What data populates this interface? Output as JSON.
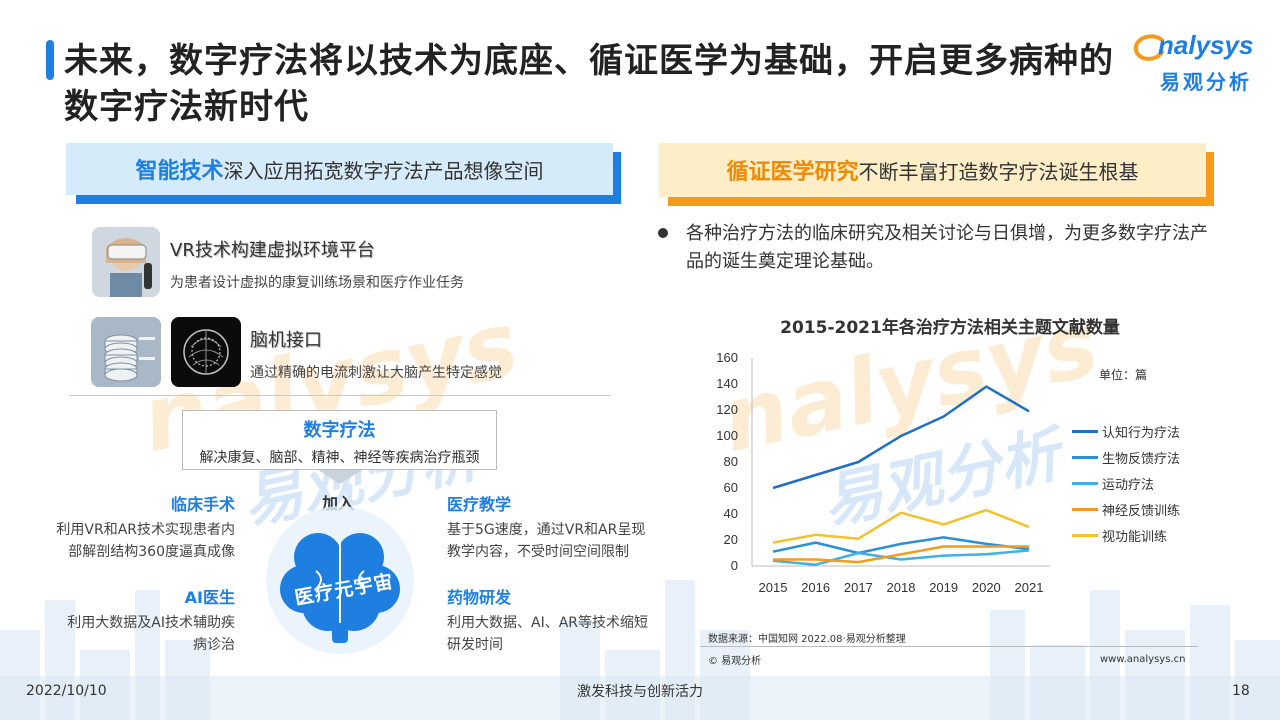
{
  "header": {
    "title": "未来，数字疗法将以技术为底座、循证医学为基础，开启更多病种的数字疗法新时代",
    "logo_text": "nalysys",
    "logo_sub": "易观分析"
  },
  "left": {
    "heading_strong": "智能技术",
    "heading_rest": "深入应用拓宽数字疗法产品想像空间",
    "items": [
      {
        "title": "VR技术构建虚拟环境平台",
        "desc": "为患者设计虚拟的康复训练场景和医疗作业任务"
      },
      {
        "title": "脑机接口",
        "desc": "通过精确的电流刺激让大脑产生特定感觉"
      }
    ],
    "dt_title": "数字疗法",
    "dt_desc": "解决康复、脑部、精神、神经等疾病治疗瓶颈",
    "join": "加入",
    "center_label": "医疗元宇宙",
    "features": [
      {
        "title": "临床手术",
        "desc1": "利用VR和AR技术实现患者内",
        "desc2": "部解剖结构360度逼真成像"
      },
      {
        "title": "医疗教学",
        "desc1": "基于5G速度，通过VR和AR呈现",
        "desc2": "教学内容，不受时间空间限制"
      },
      {
        "title": "AI医生",
        "desc1": "利用大数据及AI技术辅助疾",
        "desc2": "病诊治"
      },
      {
        "title": "药物研发",
        "desc1": "利用大数据、AI、AR等技术缩短",
        "desc2": "研发时间"
      }
    ]
  },
  "right": {
    "heading_strong": "循证医学研究",
    "heading_rest": "不断丰富打造数字疗法诞生根基",
    "bullet": "各种治疗方法的临床研究及相关讨论与日俱增，为更多数字疗法产品的诞生奠定理论基础。",
    "unit": "单位：篇",
    "source": "数据来源：中国知网 2022.08·易观分析整理",
    "copyright": "© 易观分析",
    "website": "www.analysys.cn"
  },
  "chart_data": {
    "type": "line",
    "title": "2015-2021年各治疗方法相关主题文献数量",
    "x": [
      "2015",
      "2016",
      "2017",
      "2018",
      "2019",
      "2020",
      "2021"
    ],
    "ylim": [
      0,
      160
    ],
    "yticks": [
      0,
      20,
      40,
      60,
      80,
      100,
      120,
      140,
      160
    ],
    "legend_position": "right",
    "series": [
      {
        "name": "认知行为疗法",
        "color": "#1f6fc4",
        "values": [
          60,
          70,
          80,
          100,
          115,
          138,
          119
        ]
      },
      {
        "name": "生物反馈疗法",
        "color": "#2b8fd8",
        "values": [
          11,
          18,
          10,
          17,
          22,
          17,
          13
        ]
      },
      {
        "name": "运动疗法",
        "color": "#3fb0e8",
        "values": [
          4,
          1,
          10,
          5,
          8,
          9,
          12
        ]
      },
      {
        "name": "神经反馈训练",
        "color": "#f39b1c",
        "values": [
          5,
          5,
          3,
          9,
          15,
          15,
          15
        ]
      },
      {
        "name": "视功能训练",
        "color": "#f2c22c",
        "values": [
          18,
          24,
          21,
          41,
          32,
          43,
          30
        ]
      }
    ]
  },
  "footer": {
    "date": "2022/10/10",
    "slogan": "激发科技与创新活力",
    "page": "18"
  }
}
